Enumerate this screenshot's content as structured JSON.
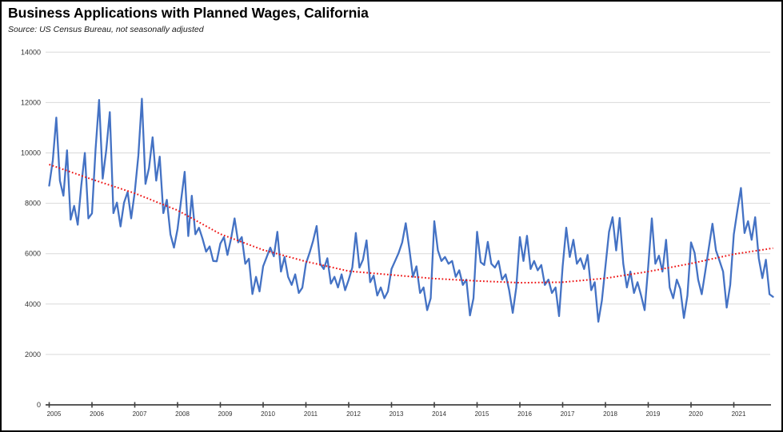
{
  "title": "Business Applications with Planned Wages, California",
  "source_note": "Source:  US Census Bureau, not seasonally adjusted",
  "colors": {
    "series_line": "#4472C4",
    "trend_line": "#EE1111",
    "gridline": "#D9D9D9",
    "axis_line": "#595959",
    "tick_mark": "#404040",
    "tick_label": "#333333",
    "border": "#000000",
    "background": "#FFFFFF"
  },
  "chart_data": {
    "type": "line",
    "title": "Business Applications with Planned Wages, California",
    "subtitle": "Source:  US Census Bureau, not seasonally adjusted",
    "xlabel": "",
    "ylabel": "",
    "x_start": "2005-01",
    "x_end": "2021-12",
    "x_tick_labels": [
      "2005",
      "2006",
      "2007",
      "2008",
      "2009",
      "2010",
      "2011",
      "2012",
      "2013",
      "2014",
      "2015",
      "2016",
      "2017",
      "2018",
      "2019",
      "2020",
      "2021"
    ],
    "y_ticks": [
      0,
      2000,
      4000,
      6000,
      8000,
      10000,
      12000,
      14000
    ],
    "ylim": [
      0,
      14000
    ],
    "grid": "horizontal",
    "legend": "none",
    "series": [
      {
        "id": "monthly",
        "style": "solid",
        "color": "#4472C4",
        "values": [
          8700,
          9700,
          11400,
          8900,
          8300,
          10100,
          7350,
          7900,
          7150,
          8700,
          10000,
          7400,
          7600,
          10150,
          12100,
          8980,
          10100,
          11620,
          7610,
          8030,
          7080,
          8030,
          8450,
          7400,
          8450,
          9900,
          12150,
          8770,
          9400,
          10620,
          8900,
          9850,
          7610,
          8140,
          6770,
          6240,
          6980,
          8140,
          9250,
          6700,
          8300,
          6770,
          7030,
          6600,
          6080,
          6290,
          5710,
          5700,
          6400,
          6660,
          5950,
          6600,
          7400,
          6450,
          6660,
          5600,
          5800,
          4400,
          5080,
          4500,
          5500,
          5870,
          6240,
          5900,
          6870,
          5290,
          5870,
          5080,
          4760,
          5180,
          4440,
          4650,
          5600,
          6030,
          6500,
          7100,
          5600,
          5390,
          5820,
          4810,
          5080,
          4660,
          5180,
          4550,
          4970,
          5450,
          6820,
          5450,
          5760,
          6530,
          4870,
          5130,
          4340,
          4660,
          4230,
          4500,
          5390,
          5710,
          6030,
          6450,
          7210,
          6190,
          5080,
          5500,
          4440,
          4660,
          3760,
          4230,
          7290,
          6130,
          5710,
          5870,
          5600,
          5710,
          5080,
          5340,
          4760,
          4970,
          3550,
          4230,
          6870,
          5660,
          5550,
          6470,
          5600,
          5450,
          5710,
          4970,
          5180,
          4550,
          3650,
          4660,
          6660,
          5710,
          6710,
          5390,
          5710,
          5340,
          5550,
          4760,
          4970,
          4440,
          4660,
          3520,
          5500,
          7030,
          5870,
          6550,
          5600,
          5820,
          5390,
          5950,
          4550,
          4870,
          3300,
          4130,
          5500,
          6870,
          7450,
          6130,
          7420,
          5600,
          4660,
          5290,
          4440,
          4870,
          4340,
          3760,
          5500,
          7400,
          5600,
          5920,
          5290,
          6550,
          4660,
          4230,
          4970,
          4600,
          3450,
          4340,
          6450,
          6030,
          4970,
          4390,
          5290,
          6240,
          7190,
          6130,
          5710,
          5290,
          3860,
          4760,
          6770,
          7720,
          8610,
          6820,
          7290,
          6550,
          7450,
          5820,
          5030,
          5760,
          4390,
          4290
        ]
      },
      {
        "id": "trend",
        "style": "dotted",
        "color": "#EE1111",
        "anchor_step_months": 12,
        "anchors": [
          9540,
          8950,
          8400,
          7720,
          6780,
          6150,
          5690,
          5310,
          5160,
          5010,
          4920,
          4845,
          4870,
          5025,
          5290,
          5610,
          5980,
          6220
        ]
      }
    ]
  }
}
